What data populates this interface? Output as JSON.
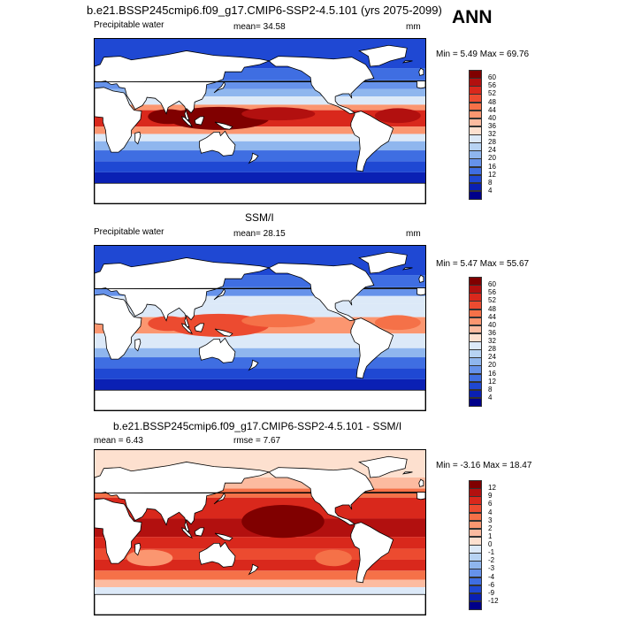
{
  "header": {
    "case_title": "b.e21.BSSP245cmip6.f09_g17.CMIP6-SSP2-4.5.101 (yrs 2075-2099)",
    "season": "ANN"
  },
  "panel1": {
    "variable": "Precipitable water",
    "mean": "mean=  34.58",
    "units": "mm",
    "minmax": "Min =   5.49 Max =  69.76",
    "colorbar_labels": [
      "60",
      "56",
      "52",
      "48",
      "44",
      "40",
      "36",
      "32",
      "28",
      "24",
      "20",
      "16",
      "12",
      "8",
      "4"
    ]
  },
  "panel2": {
    "source": "SSM/I",
    "variable": "Precipitable water",
    "mean": "mean=  28.15",
    "units": "mm",
    "minmax": "Min =   5.47 Max =  55.67",
    "colorbar_labels": [
      "60",
      "56",
      "52",
      "48",
      "44",
      "40",
      "36",
      "32",
      "28",
      "24",
      "20",
      "16",
      "12",
      "8",
      "4"
    ]
  },
  "panel3": {
    "title": "b.e21.BSSP245cmip6.f09_g17.CMIP6-SSP2-4.5.101 - SSM/I",
    "mean": "mean =   6.43",
    "rmse": "rmse =   7.67",
    "minmax": "Min =  -3.16 Max =  18.47",
    "colorbar_labels": [
      "12",
      "9",
      "6",
      "4",
      "3",
      "2",
      "1",
      "0",
      "-1",
      "-2",
      "-3",
      "-4",
      "-6",
      "-9",
      "-12"
    ]
  },
  "colors": {
    "abs_scale": [
      "#800000",
      "#b2100f",
      "#d9281c",
      "#ec4b30",
      "#f57148",
      "#fb9670",
      "#fcbba0",
      "#fde0cf",
      "#dce9f8",
      "#b7d3f3",
      "#8fb6ee",
      "#6692ea",
      "#3f6ee2",
      "#1f48d3",
      "#0a20b4",
      "#00008a"
    ],
    "diff_scale": [
      "#800000",
      "#b2100f",
      "#d9281c",
      "#ec4b30",
      "#f57148",
      "#fb9670",
      "#fcbba0",
      "#fde0cf",
      "#dce9f8",
      "#b7d3f3",
      "#8fb6ee",
      "#6692ea",
      "#3f6ee2",
      "#1f48d3",
      "#0a20b4",
      "#00008a"
    ],
    "land": "#ffffff",
    "coast": "#000000"
  }
}
